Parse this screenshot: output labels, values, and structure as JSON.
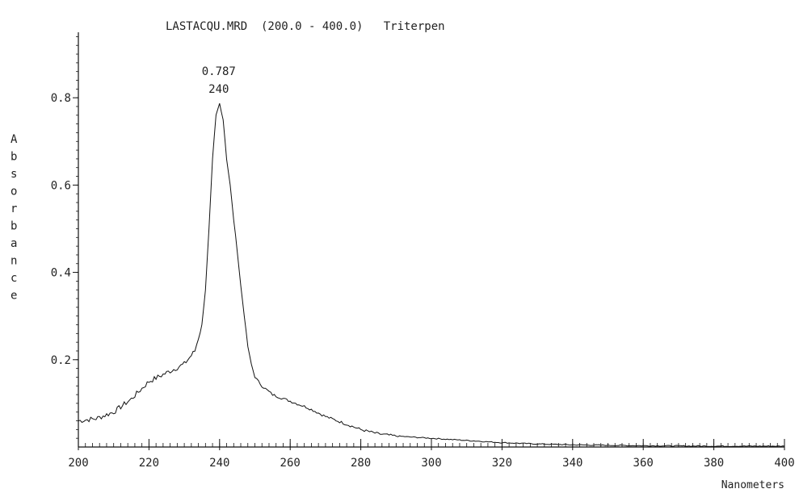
{
  "chart_data": {
    "type": "line",
    "title": "LASTACQU.MRD  (200.0 - 400.0)   Triterpen",
    "xlabel": "Nanometers",
    "ylabel": "Absorbance",
    "xlim": [
      200,
      400
    ],
    "ylim": [
      0,
      0.95
    ],
    "x_ticks": [
      200,
      220,
      240,
      260,
      280,
      300,
      320,
      340,
      360,
      380,
      400
    ],
    "x_tick_labels": [
      "200",
      "220",
      "240",
      "260",
      "280",
      "300",
      "320",
      "340",
      "360",
      "380",
      "400"
    ],
    "y_ticks": [
      0.2,
      0.4,
      0.6,
      0.8
    ],
    "y_tick_labels": [
      "0.2",
      "0.4",
      "0.6",
      "0.8"
    ],
    "grid": false,
    "annotations": [
      {
        "text": "0.787",
        "x": 240,
        "y": 0.787
      },
      {
        "text": "240",
        "x": 240,
        "y": 0.787
      }
    ],
    "series": [
      {
        "x": [
          200,
          205,
          210,
          215,
          220,
          225,
          230,
          233,
          235,
          236,
          237,
          238,
          239,
          240,
          241,
          242,
          243,
          244,
          245,
          246,
          247,
          248,
          249,
          250,
          252,
          255,
          260,
          265,
          270,
          275,
          280,
          285,
          290,
          300,
          310,
          320,
          330,
          340,
          360,
          380,
          400
        ],
        "y": [
          0.06,
          0.065,
          0.08,
          0.11,
          0.15,
          0.17,
          0.19,
          0.22,
          0.28,
          0.36,
          0.5,
          0.66,
          0.76,
          0.787,
          0.75,
          0.66,
          0.6,
          0.52,
          0.45,
          0.37,
          0.3,
          0.23,
          0.19,
          0.16,
          0.14,
          0.12,
          0.105,
          0.09,
          0.07,
          0.055,
          0.04,
          0.03,
          0.025,
          0.02,
          0.015,
          0.01,
          0.007,
          0.005,
          0.003,
          0.002,
          0.002
        ]
      }
    ]
  }
}
